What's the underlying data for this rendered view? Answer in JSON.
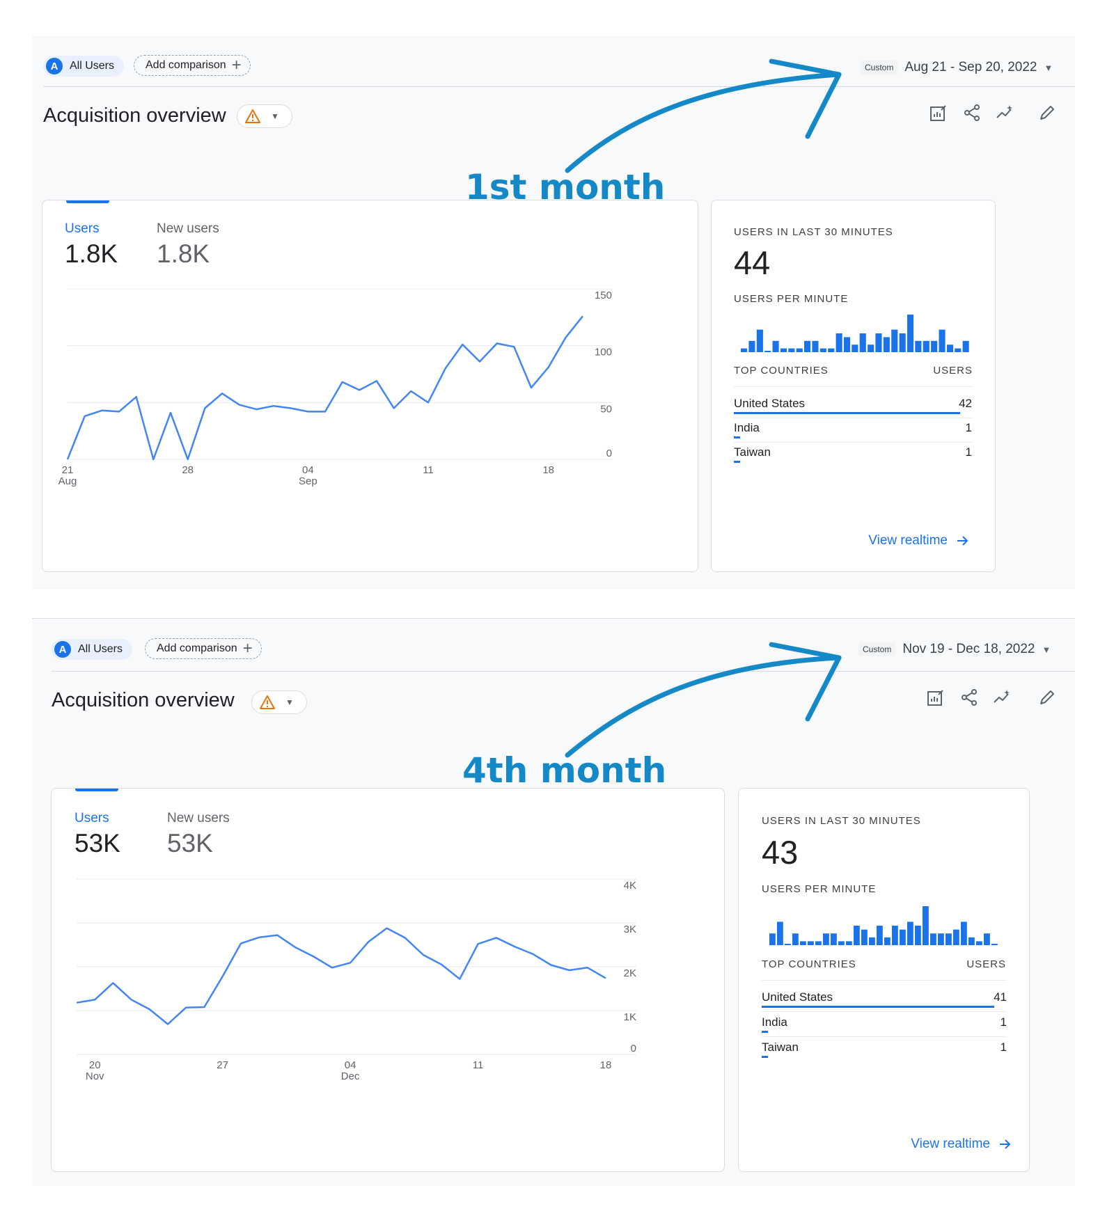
{
  "colors": {
    "accent": "#1a73e8",
    "annotation": "#1589c8",
    "warning": "#e8710a"
  },
  "reports": [
    {
      "segment_chip": {
        "avatar": "A",
        "label": "All Users"
      },
      "compare_chip": {
        "label": "Add comparison"
      },
      "date_range": {
        "tag": "Custom",
        "label": "Aug 21 - Sep 20, 2022"
      },
      "title": "Acquisition overview",
      "annotation": "1st month",
      "metrics": [
        {
          "label": "Users",
          "value": "1.8K"
        },
        {
          "label": "New users",
          "value": "1.8K"
        }
      ],
      "chart_data": {
        "type": "line",
        "series": [
          {
            "values": [
              0,
              38,
              43,
              42,
              55,
              0,
              41,
              0,
              45,
              58,
              48,
              44,
              47,
              45,
              42,
              42,
              68,
              61,
              69,
              45,
              60,
              50,
              80,
              101,
              86,
              102,
              99,
              63,
              81,
              107,
              126
            ]
          }
        ],
        "ylim": [
          0,
          150
        ],
        "y_ticks": [
          "150",
          "100",
          "50",
          "0"
        ],
        "x_ticks": [
          {
            "index": 0,
            "label": "21",
            "sub": "Aug"
          },
          {
            "index": 7,
            "label": "28",
            "sub": ""
          },
          {
            "index": 14,
            "label": "04",
            "sub": "Sep"
          },
          {
            "index": 21,
            "label": "11",
            "sub": ""
          },
          {
            "index": 28,
            "label": "18",
            "sub": ""
          }
        ],
        "grid": true
      },
      "realtime": {
        "caption": "USERS IN LAST 30 MINUTES",
        "value": "44",
        "per_minute_caption": "USERS PER MINUTE",
        "per_minute": [
          1,
          3,
          6,
          0,
          3,
          1,
          1,
          1,
          3,
          3,
          1,
          1,
          5,
          4,
          2,
          5,
          2,
          5,
          4,
          6,
          5,
          10,
          3,
          3,
          3,
          6,
          2,
          1,
          3
        ],
        "countries_header": "TOP COUNTRIES",
        "users_header": "USERS",
        "countries": [
          {
            "name": "United States",
            "users": "42",
            "share": 0.95
          },
          {
            "name": "India",
            "users": "1",
            "share": 0.025
          },
          {
            "name": "Taiwan",
            "users": "1",
            "share": 0.025
          }
        ],
        "view_label": "View realtime"
      }
    },
    {
      "segment_chip": {
        "avatar": "A",
        "label": "All Users"
      },
      "compare_chip": {
        "label": "Add comparison"
      },
      "date_range": {
        "tag": "Custom",
        "label": "Nov 19 - Dec 18, 2022"
      },
      "title": "Acquisition overview",
      "annotation": "4th month",
      "metrics": [
        {
          "label": "Users",
          "value": "53K"
        },
        {
          "label": "New users",
          "value": "53K"
        }
      ],
      "chart_data": {
        "type": "line",
        "series": [
          {
            "values": [
              1180,
              1250,
              1630,
              1250,
              1030,
              690,
              1070,
              1080,
              1780,
              2530,
              2670,
              2720,
              2440,
              2230,
              1980,
              2090,
              2570,
              2880,
              2660,
              2270,
              2050,
              1720,
              2520,
              2660,
              2460,
              2290,
              2040,
              1920,
              1980,
              1740
            ]
          }
        ],
        "ylim": [
          0,
          4000
        ],
        "y_ticks": [
          "4K",
          "3K",
          "2K",
          "1K",
          "0"
        ],
        "x_ticks": [
          {
            "index": 1,
            "label": "20",
            "sub": "Nov"
          },
          {
            "index": 8,
            "label": "27",
            "sub": ""
          },
          {
            "index": 15,
            "label": "04",
            "sub": "Dec"
          },
          {
            "index": 22,
            "label": "11",
            "sub": ""
          },
          {
            "index": 29,
            "label": "18",
            "sub": ""
          }
        ],
        "grid": true
      },
      "realtime": {
        "caption": "USERS IN LAST 30 MINUTES",
        "value": "43",
        "per_minute_caption": "USERS PER MINUTE",
        "per_minute": [
          3,
          6,
          0,
          3,
          1,
          1,
          1,
          3,
          3,
          1,
          1,
          5,
          4,
          2,
          5,
          2,
          5,
          4,
          6,
          5,
          10,
          3,
          3,
          3,
          4,
          6,
          2,
          1,
          3,
          0
        ],
        "countries_header": "TOP COUNTRIES",
        "users_header": "USERS",
        "countries": [
          {
            "name": "United States",
            "users": "41",
            "share": 0.95
          },
          {
            "name": "India",
            "users": "1",
            "share": 0.025
          },
          {
            "name": "Taiwan",
            "users": "1",
            "share": 0.025
          }
        ],
        "view_label": "View realtime"
      }
    }
  ]
}
